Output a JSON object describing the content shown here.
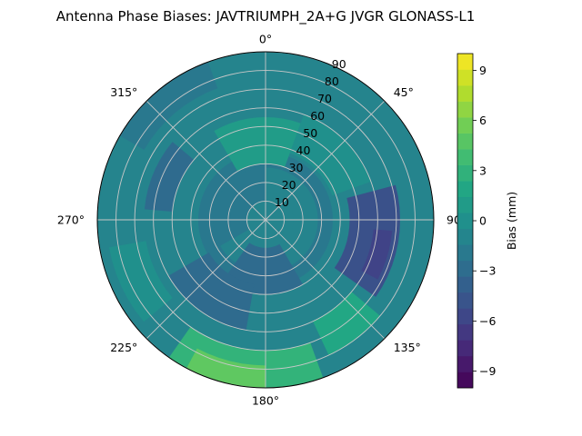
{
  "chart_data": {
    "type": "heatmap",
    "projection": "polar",
    "title": "Antenna Phase Biases: JAVTRIUMPH_2A+G JVGR GLONASS-L1",
    "azimuth_direction": "clockwise",
    "azimuth_zero": "top",
    "azimuth_tick_labels": [
      {
        "angle": 0,
        "label": "0°"
      },
      {
        "angle": 45,
        "label": "45°"
      },
      {
        "angle": 90,
        "label": "90"
      },
      {
        "angle": 135,
        "label": "135°"
      },
      {
        "angle": 180,
        "label": "180°"
      },
      {
        "angle": 225,
        "label": "225°"
      },
      {
        "angle": 270,
        "label": "270°"
      },
      {
        "angle": 315,
        "label": "315°"
      }
    ],
    "radial_ticks": [
      10,
      20,
      30,
      40,
      50,
      60,
      70,
      80,
      90
    ],
    "radial_tick_labels": [
      "10",
      "20",
      "30",
      "40",
      "50",
      "60",
      "70",
      "80",
      "90"
    ],
    "rlim": [
      0,
      90
    ],
    "grid": true,
    "colorbar": {
      "label": "Bias (mm)",
      "range": [
        -10,
        10
      ],
      "colormap": "viridis",
      "ticks": [
        -9,
        -6,
        -3,
        0,
        3,
        6,
        9
      ],
      "tick_labels": [
        "−9",
        "−6",
        "−3",
        "0",
        "3",
        "6",
        "9"
      ],
      "levels": 21
    },
    "regions": [
      {
        "az": [
          0,
          360
        ],
        "r": [
          0,
          90
        ],
        "value": -1
      },
      {
        "az": [
          0,
          360
        ],
        "r": [
          0,
          15
        ],
        "value": -1.5
      },
      {
        "az": [
          240,
          360
        ],
        "r": [
          10,
          28
        ],
        "value": -2
      },
      {
        "az": [
          0,
          360
        ],
        "r": [
          28,
          36
        ],
        "value": -2
      },
      {
        "az": [
          330,
          380
        ],
        "r": [
          30,
          55
        ],
        "value": 1
      },
      {
        "az": [
          20,
          70
        ],
        "r": [
          38,
          60
        ],
        "value": 0
      },
      {
        "az": [
          75,
          125
        ],
        "r": [
          45,
          72
        ],
        "value": -5
      },
      {
        "az": [
          95,
          118
        ],
        "r": [
          58,
          68
        ],
        "value": -6
      },
      {
        "az": [
          150,
          215
        ],
        "r": [
          15,
          40
        ],
        "value": -3
      },
      {
        "az": [
          190,
          240
        ],
        "r": [
          35,
          60
        ],
        "value": -3.5
      },
      {
        "az": [
          275,
          310
        ],
        "r": [
          50,
          65
        ],
        "value": -3
      },
      {
        "az": [
          300,
          340
        ],
        "r": [
          75,
          90
        ],
        "value": -2.5
      },
      {
        "az": [
          130,
          155
        ],
        "r": [
          60,
          80
        ],
        "value": 2
      },
      {
        "az": [
          160,
          215
        ],
        "r": [
          70,
          90
        ],
        "value": 3
      },
      {
        "az": [
          180,
          208
        ],
        "r": [
          78,
          90
        ],
        "value": 5
      },
      {
        "az": [
          230,
          260
        ],
        "r": [
          65,
          85
        ],
        "value": -0.5
      }
    ]
  }
}
